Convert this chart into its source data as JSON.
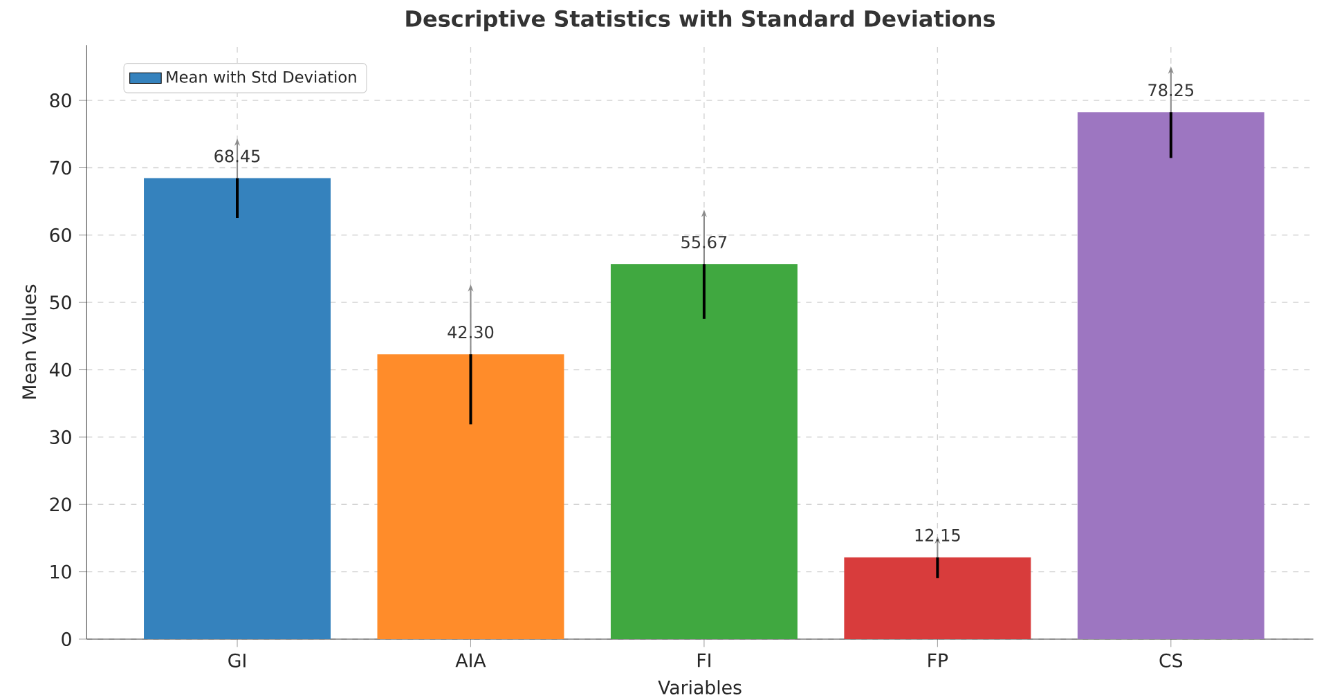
{
  "chart_data": {
    "type": "bar",
    "title": "Descriptive Statistics with Standard Deviations",
    "xlabel": "Variables",
    "ylabel": "Mean Values",
    "categories": [
      "GI",
      "AIA",
      "FI",
      "FP",
      "CS"
    ],
    "series": [
      {
        "name": "Mean with Std Deviation",
        "color": "#3582bd",
        "colors": [
          "#3582bd",
          "#ff8c2a",
          "#40a840",
          "#d83c3c",
          "#9d76c1"
        ],
        "values": [
          68.45,
          42.3,
          55.67,
          12.15,
          78.25
        ],
        "errors": [
          5.9,
          10.4,
          8.1,
          3.1,
          6.8
        ],
        "value_labels": [
          "68.45",
          "42.30",
          "55.67",
          "12.15",
          "78.25"
        ]
      }
    ],
    "ylim": [
      0,
      88.2
    ],
    "yticks": [
      0,
      10,
      20,
      30,
      40,
      50,
      60,
      70,
      80
    ],
    "grid": true,
    "legend": "top left"
  }
}
